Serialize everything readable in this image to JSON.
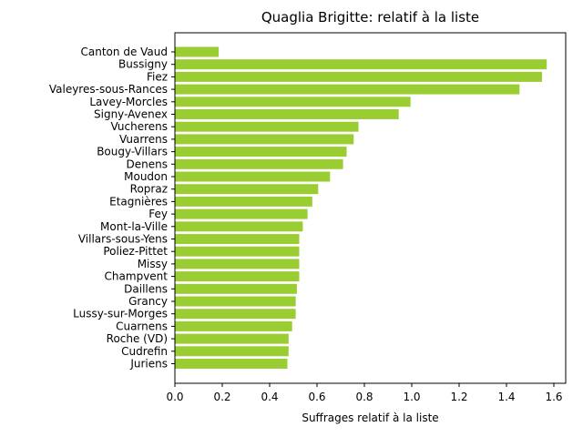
{
  "chart_data": {
    "type": "bar",
    "orientation": "horizontal",
    "title": "Quaglia Brigitte: relatif à la liste",
    "xlabel": "Suffrages relatif à la liste",
    "ylabel": "",
    "xlim": [
      0,
      1.65
    ],
    "xticks": [
      "0.0",
      "0.2",
      "0.4",
      "0.6",
      "0.8",
      "1.0",
      "1.2",
      "1.4",
      "1.6"
    ],
    "bar_color": "#9acd32",
    "grid": false,
    "categories": [
      "Canton de Vaud",
      "Bussigny",
      "Fiez",
      "Valeyres-sous-Rances",
      "Lavey-Morcles",
      "Signy-Avenex",
      "Vucherens",
      "Vuarrens",
      "Bougy-Villars",
      "Denens",
      "Moudon",
      "Ropraz",
      "Etagnières",
      "Fey",
      "Mont-la-Ville",
      "Villars-sous-Yens",
      "Poliez-Pittet",
      "Missy",
      "Champvent",
      "Daillens",
      "Grancy",
      "Lussy-sur-Morges",
      "Cuarnens",
      "Roche (VD)",
      "Cudrefin",
      "Juriens"
    ],
    "values": [
      0.185,
      1.57,
      1.55,
      1.455,
      0.995,
      0.945,
      0.775,
      0.755,
      0.725,
      0.71,
      0.655,
      0.605,
      0.58,
      0.56,
      0.54,
      0.525,
      0.525,
      0.525,
      0.525,
      0.515,
      0.51,
      0.51,
      0.495,
      0.48,
      0.48,
      0.475
    ]
  }
}
